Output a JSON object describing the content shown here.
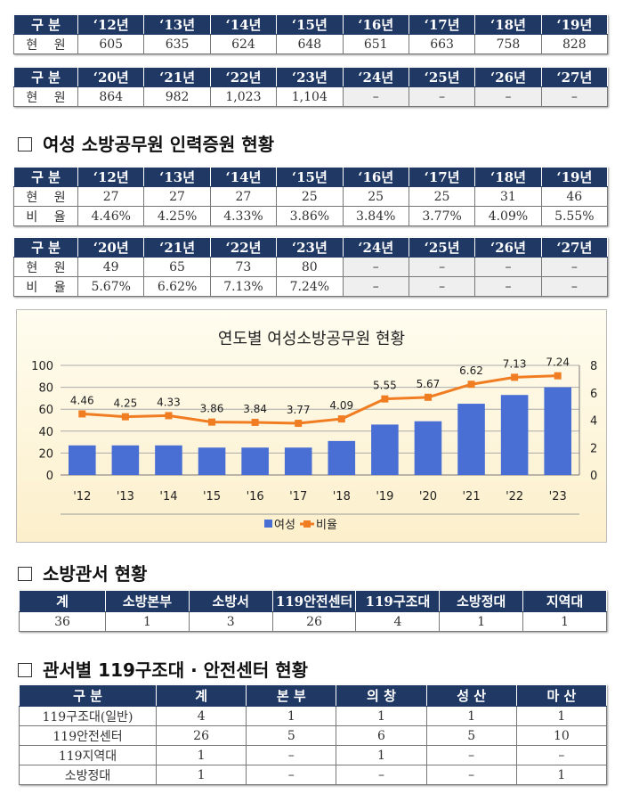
{
  "table_staff_1": {
    "header": [
      "구 분",
      "‘12년",
      "‘13년",
      "‘14년",
      "‘15년",
      "‘16년",
      "‘17년",
      "‘18년",
      "‘19년"
    ],
    "rows": [
      [
        "현 원",
        "605",
        "635",
        "624",
        "648",
        "651",
        "663",
        "758",
        "828"
      ]
    ]
  },
  "table_staff_2": {
    "header": [
      "구 분",
      "‘20년",
      "‘21년",
      "‘22년",
      "‘23년",
      "‘24년",
      "‘25년",
      "‘26년",
      "‘27년"
    ],
    "rows": [
      [
        "현 원",
        "864",
        "982",
        "1,023",
        "1,104",
        "–",
        "–",
        "–",
        "–"
      ]
    ]
  },
  "section_women": "여성 소방공무원 인력증원 현황",
  "table_women_1": {
    "header": [
      "구 분",
      "‘12년",
      "‘13년",
      "‘14년",
      "‘15년",
      "‘16년",
      "‘17년",
      "‘18년",
      "‘19년"
    ],
    "rows": [
      [
        "현 원",
        "27",
        "27",
        "27",
        "25",
        "25",
        "25",
        "31",
        "46"
      ],
      [
        "비 율",
        "4.46%",
        "4.25%",
        "4.33%",
        "3.86%",
        "3.84%",
        "3.77%",
        "4.09%",
        "5.55%"
      ]
    ]
  },
  "table_women_2": {
    "header": [
      "구 분",
      "‘20년",
      "‘21년",
      "‘22년",
      "‘23년",
      "‘24년",
      "‘25년",
      "‘26년",
      "‘27년"
    ],
    "rows": [
      [
        "현 원",
        "49",
        "65",
        "73",
        "80",
        "–",
        "–",
        "–",
        "–"
      ],
      [
        "비 율",
        "5.67%",
        "6.62%",
        "7.13%",
        "7.24%",
        "–",
        "–",
        "–",
        "–"
      ]
    ]
  },
  "chart_data": {
    "type": "bar",
    "title": "연도별 여성소방공무원 현황",
    "categories": [
      "'12",
      "'13",
      "'14",
      "'15",
      "'16",
      "'17",
      "'18",
      "'19",
      "'20",
      "'21",
      "'22",
      "'23"
    ],
    "series": [
      {
        "name": "여성",
        "type": "bar",
        "axis": "left",
        "color": "#4a6fd4",
        "values": [
          27,
          27,
          27,
          25,
          25,
          25,
          31,
          46,
          49,
          65,
          73,
          80
        ]
      },
      {
        "name": "비율",
        "type": "line",
        "axis": "right",
        "color": "#f07d22",
        "values": [
          4.46,
          4.25,
          4.33,
          3.86,
          3.84,
          3.77,
          4.09,
          5.55,
          5.67,
          6.62,
          7.13,
          7.24
        ],
        "labels": [
          "4.46",
          "4.25",
          "4.33",
          "3.86",
          "3.84",
          "3.77",
          "4.09",
          "5.55",
          "5.67",
          "6.62",
          "7.13",
          "7.24"
        ]
      }
    ],
    "ylim": [
      0,
      100
    ],
    "yticks": [
      "0",
      "20",
      "40",
      "60",
      "80",
      "100"
    ],
    "y2lim": [
      0,
      8
    ],
    "y2ticks": [
      "0",
      "2",
      "4",
      "6",
      "8"
    ],
    "grid": true,
    "legend": "bottom"
  },
  "section_stations": "소방관서 현황",
  "table_stations": {
    "header": [
      "계",
      "소방본부",
      "소방서",
      "119안전센터",
      "119구조대",
      "소방정대",
      "지역대"
    ],
    "rows": [
      [
        "36",
        "1",
        "3",
        "26",
        "4",
        "1",
        "1"
      ]
    ]
  },
  "section_by_office": "관서별 119구조대 · 안전센터 현황",
  "table_by_office": {
    "header": [
      "구  분",
      "계",
      "본 부",
      "의 창",
      "성 산",
      "마 산"
    ],
    "rows": [
      [
        "119구조대(일반)",
        "4",
        "1",
        "1",
        "1",
        "1"
      ],
      [
        "119안전센터",
        "26",
        "5",
        "6",
        "5",
        "10"
      ],
      [
        "119지역대",
        "1",
        "–",
        "1",
        "–",
        "–"
      ],
      [
        "소방정대",
        "1",
        "–",
        "–",
        "–",
        "1"
      ]
    ]
  }
}
